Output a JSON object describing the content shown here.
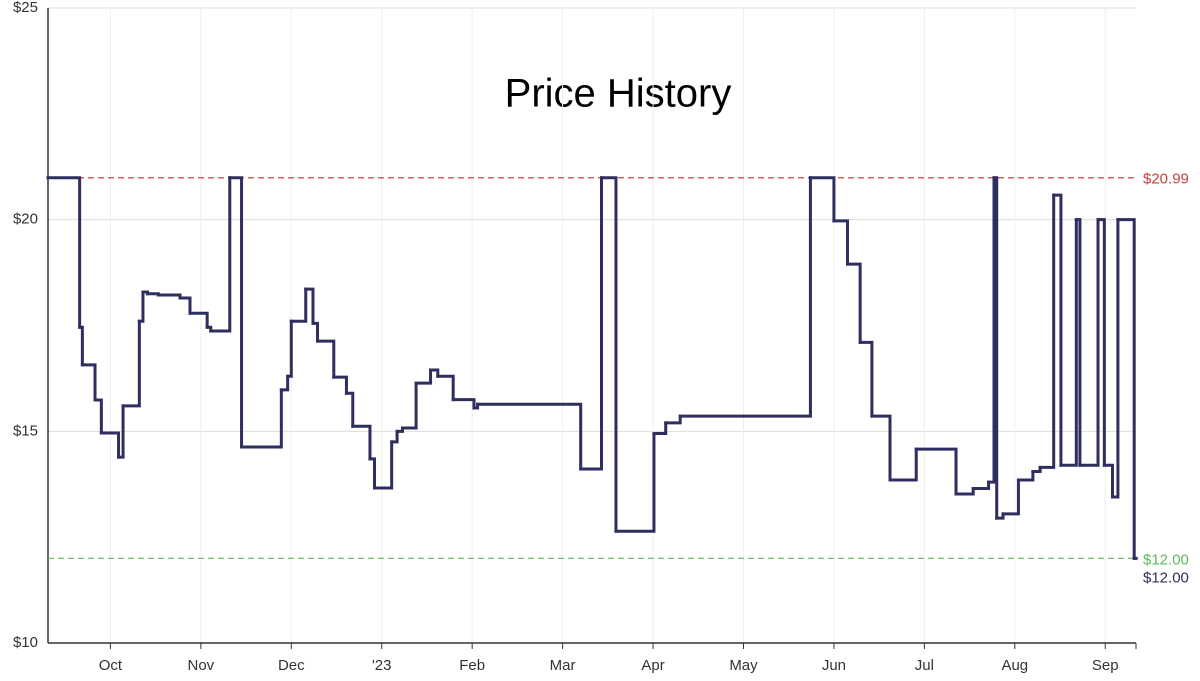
{
  "chart_data": {
    "type": "line",
    "step": "post",
    "title": "Price History",
    "series": [
      {
        "color": "#2e2f5e",
        "x": [
          9.31,
          9.66,
          9.69,
          9.83,
          9.9,
          10.09,
          10.14,
          10.32,
          10.36,
          10.41,
          10.53,
          10.77,
          10.88,
          11.07,
          11.11,
          11.32,
          11.45,
          11.89,
          11.96,
          12.0,
          12.16,
          12.24,
          12.29,
          12.47,
          12.61,
          12.68,
          12.87,
          12.92,
          13.11,
          13.17,
          13.23,
          13.38,
          13.54,
          13.62,
          13.79,
          14.02,
          14.06,
          15.2,
          15.43,
          15.59,
          16.01,
          16.14,
          16.3,
          17.74,
          18.0,
          18.15,
          18.29,
          18.42,
          18.62,
          18.91,
          19.35,
          19.54,
          19.71,
          19.77,
          19.8,
          19.87,
          20.04,
          20.2,
          20.28,
          20.43,
          20.51,
          20.68,
          20.72,
          20.92,
          20.99,
          21.08,
          21.14,
          21.32
        ],
        "values": [
          20.99,
          17.46,
          16.57,
          15.74,
          14.96,
          14.39,
          15.6,
          17.6,
          18.29,
          18.25,
          18.22,
          18.15,
          17.79,
          17.46,
          17.37,
          20.99,
          14.63,
          15.98,
          16.3,
          17.6,
          18.36,
          17.55,
          17.13,
          16.28,
          15.9,
          15.12,
          14.35,
          13.66,
          14.75,
          15.0,
          15.08,
          16.14,
          16.45,
          16.3,
          15.75,
          15.55,
          15.64,
          14.11,
          20.99,
          12.64,
          14.95,
          15.2,
          15.36,
          20.99,
          19.97,
          18.95,
          17.1,
          15.36,
          13.85,
          14.58,
          13.52,
          13.65,
          13.8,
          20.99,
          12.95,
          13.05,
          13.85,
          14.05,
          14.15,
          20.58,
          14.2,
          20.0,
          14.2,
          20.0,
          14.2,
          13.45,
          20.0,
          12.0
        ]
      }
    ],
    "xlim": [
      9.31,
      21.34
    ],
    "xticks": [
      {
        "value": 10,
        "label": "Oct"
      },
      {
        "value": 11,
        "label": "Nov"
      },
      {
        "value": 12,
        "label": "Dec"
      },
      {
        "value": 13,
        "label": "'23"
      },
      {
        "value": 14,
        "label": "Feb"
      },
      {
        "value": 15,
        "label": "Mar"
      },
      {
        "value": 16,
        "label": "Apr"
      },
      {
        "value": 17,
        "label": "May"
      },
      {
        "value": 18,
        "label": "Jun"
      },
      {
        "value": 19,
        "label": "Jul"
      },
      {
        "value": 20,
        "label": "Aug"
      },
      {
        "value": 21,
        "label": "Sep"
      }
    ],
    "ylim": [
      10,
      25
    ],
    "yticks": [
      {
        "value": 10,
        "label": "$10"
      },
      {
        "value": 15,
        "label": "$15"
      },
      {
        "value": 20,
        "label": "$20"
      },
      {
        "value": 25,
        "label": "$25"
      }
    ],
    "grid": true,
    "annotations": [
      {
        "value": 20.99,
        "label": "$20.99",
        "color": "#c9403c",
        "style": "dashed"
      },
      {
        "value": 12.0,
        "label": "$12.00",
        "color": "#5cb85c",
        "style": "dashed"
      },
      {
        "value": 12.0,
        "label": "$12.00",
        "color": "#2e2f5e",
        "style": "none"
      }
    ]
  }
}
